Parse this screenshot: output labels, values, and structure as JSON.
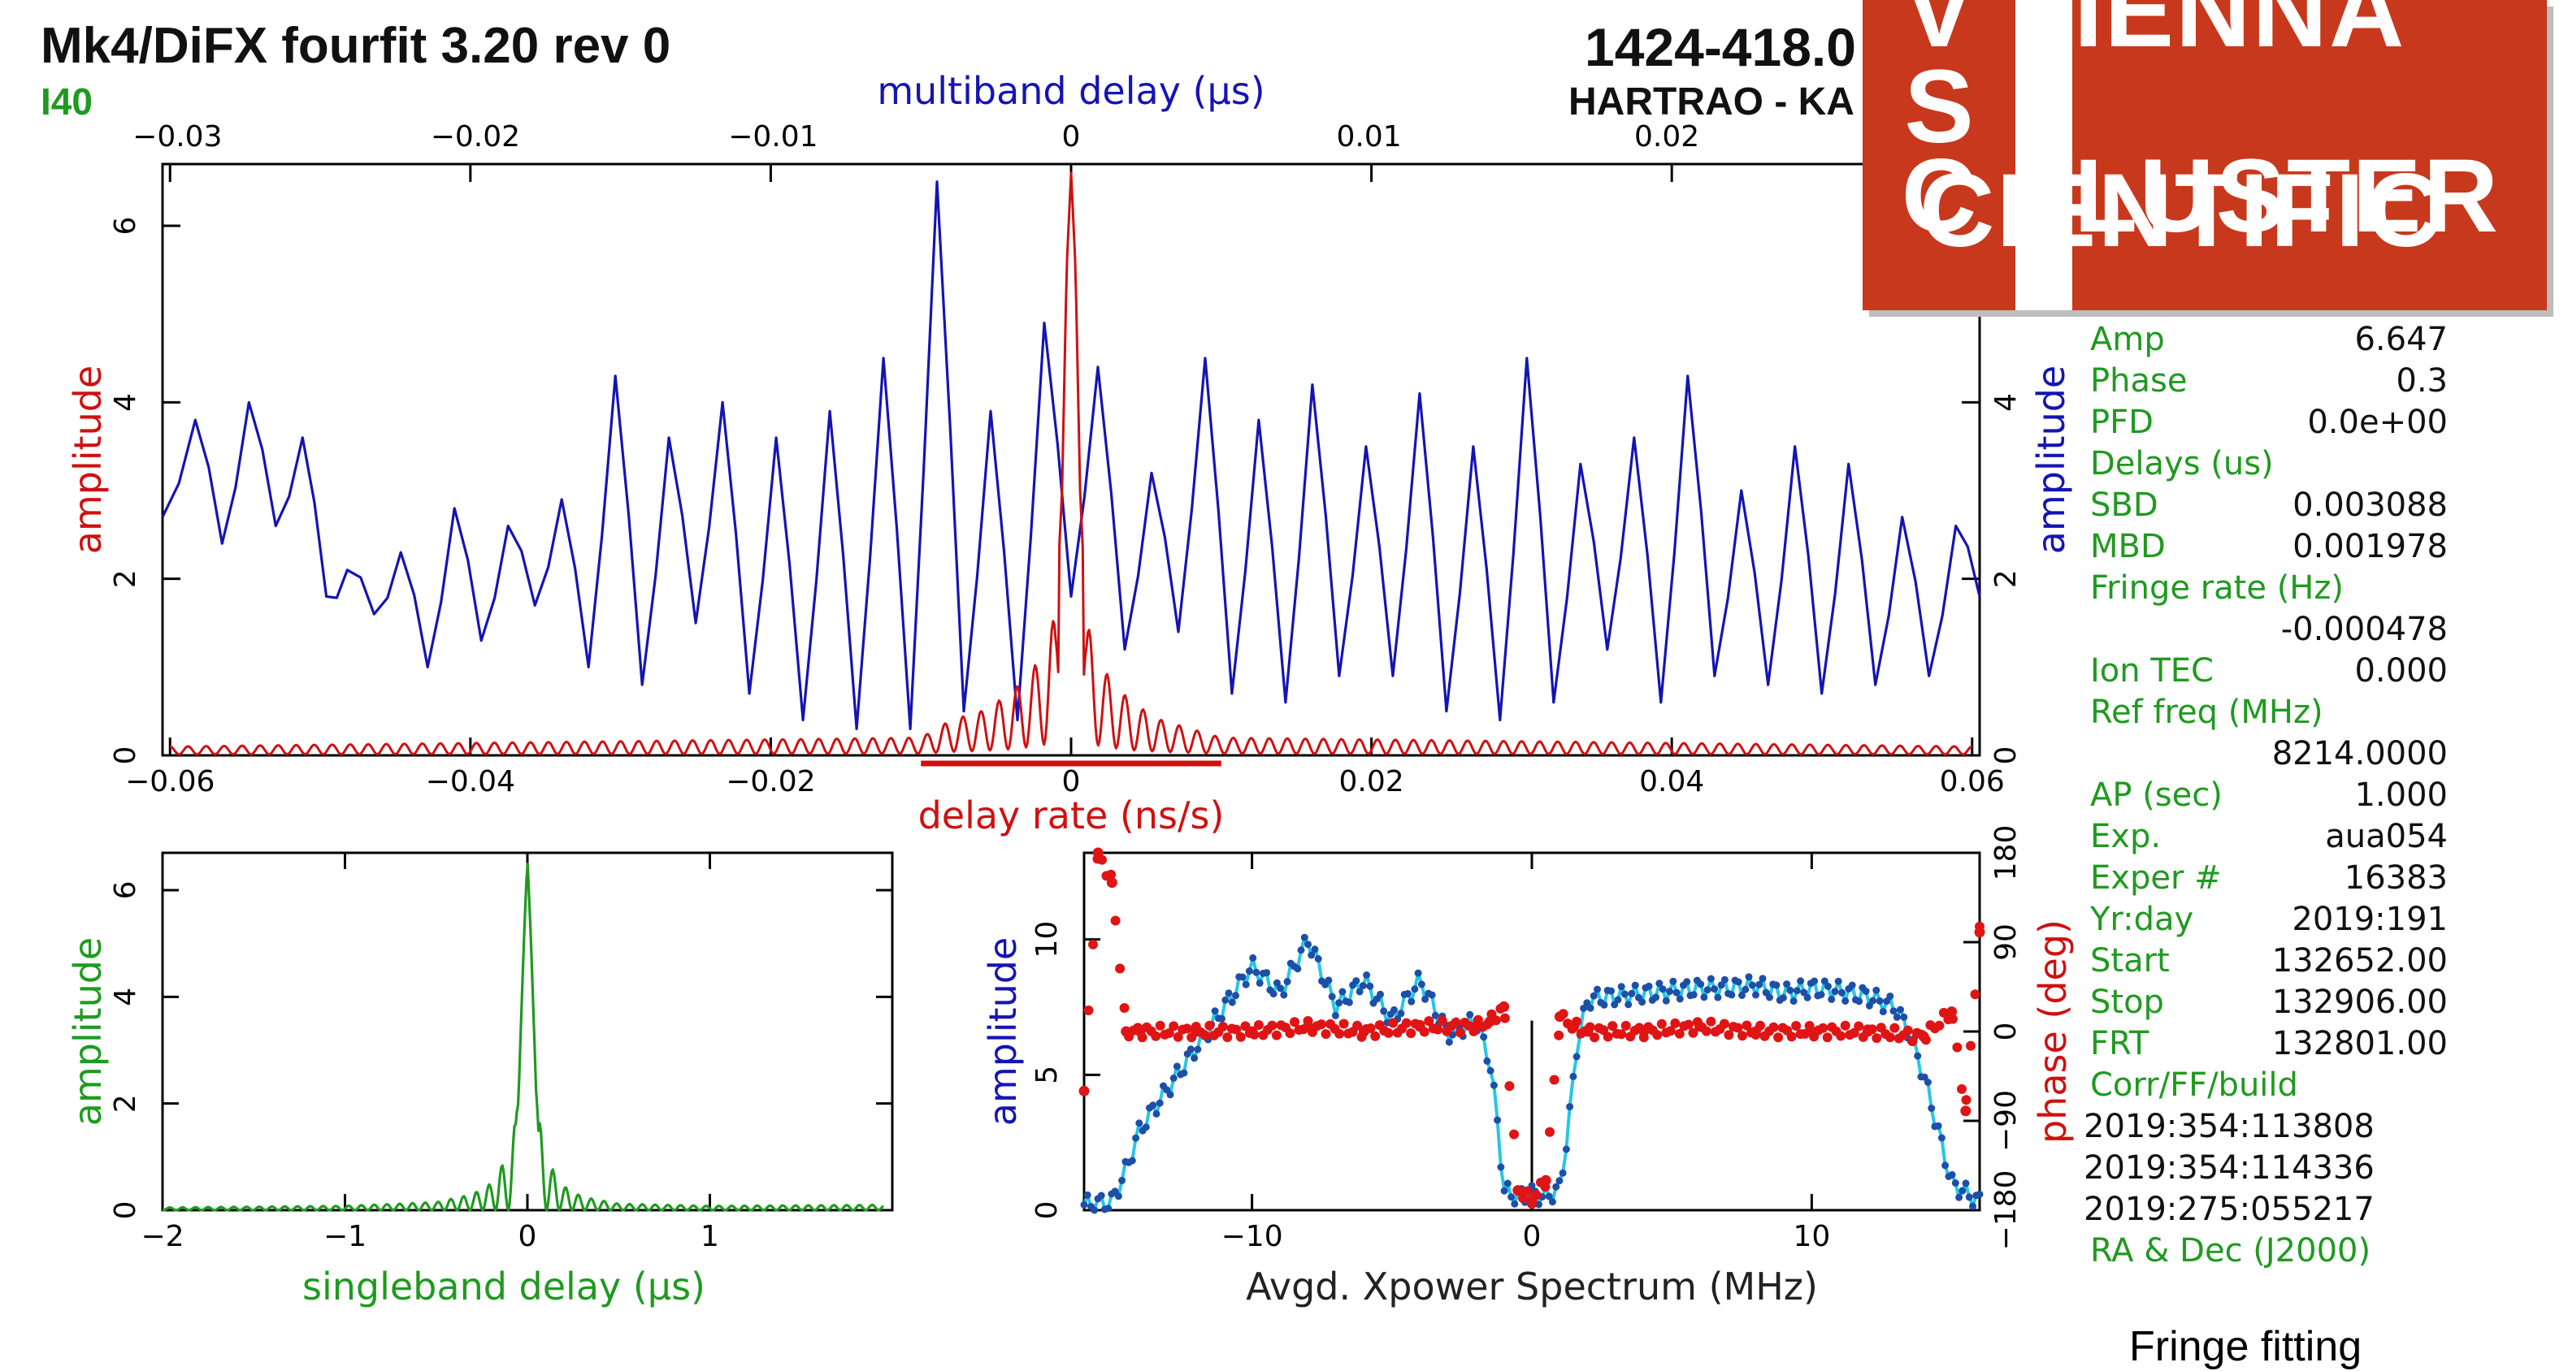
{
  "header": {
    "title": "Mk4/DiFX fourfit 3.20 rev 0",
    "label_left": "I40",
    "source": "1424-418.0",
    "baseline": "HARTRAO - KA"
  },
  "logo": {
    "line1": [
      "V",
      "IENNA"
    ],
    "line2": [
      "S",
      "CIENTIFIC"
    ],
    "line3": [
      "C",
      "LUSTER"
    ],
    "background": "#c8381c"
  },
  "info_panel": {
    "rows": [
      {
        "key": "Amp",
        "value": "6.647"
      },
      {
        "key": "Phase",
        "value": "0.3"
      },
      {
        "key": "PFD",
        "value": "0.0e+00"
      },
      {
        "key": "Delays (us)",
        "value": ""
      },
      {
        "key": "SBD",
        "value": "0.003088"
      },
      {
        "key": "MBD",
        "value": "0.001978"
      },
      {
        "key": "Fringe rate (Hz)",
        "value": ""
      },
      {
        "key": "",
        "value": "-0.000478"
      },
      {
        "key": "Ion TEC",
        "value": "0.000"
      },
      {
        "key": "Ref freq (MHz)",
        "value": ""
      },
      {
        "key": "",
        "value": "8214.0000"
      },
      {
        "key": "AP (sec)",
        "value": "1.000"
      },
      {
        "key": "Exp.",
        "value": "aua054"
      },
      {
        "key": "Exper #",
        "value": "16383"
      },
      {
        "key": "Yr:day",
        "value": "2019:191"
      },
      {
        "key": "Start",
        "value": "132652.00"
      },
      {
        "key": "Stop",
        "value": "132906.00"
      },
      {
        "key": "FRT",
        "value": "132801.00"
      },
      {
        "key": "Corr/FF/build",
        "value": ""
      }
    ],
    "build_dates": [
      "2019:354:113808",
      "2019:354:114336",
      "2019:275:055217"
    ],
    "footer": "RA & Dec (J2000)"
  },
  "caption": "Fringe fitting",
  "colors": {
    "blue": "#1414b4",
    "red": "#d01010",
    "green": "#1f9a1f",
    "cyan": "#22c8e6",
    "point_blue": "#1d4fa8",
    "point_red": "#e01414"
  },
  "chart_data": [
    {
      "type": "line",
      "panel": "delay-rate / multiband-delay",
      "top_axis": {
        "label": "multiband delay (μs)",
        "range": [
          -0.0305,
          0.0305
        ],
        "ticks": [
          -0.03,
          -0.02,
          -0.01,
          0,
          0.01,
          0.02
        ]
      },
      "bottom_axis": {
        "label": "delay rate (ns/s)",
        "range": [
          -0.0605,
          0.0605
        ],
        "ticks": [
          -0.06,
          -0.04,
          -0.02,
          0,
          0.02,
          0.04,
          0.06
        ]
      },
      "left_axis": {
        "label": "amplitude",
        "range": [
          0,
          6.7
        ],
        "ticks": [
          0,
          2,
          4,
          6
        ]
      },
      "right_axis": {
        "label": "amplitude",
        "range": [
          0,
          6.7
        ],
        "ticks": [
          0,
          2,
          4
        ]
      },
      "red_window": [
        -0.01,
        0.01
      ],
      "series": [
        {
          "axis": "multiband delay",
          "x": [
            -0.0305,
            -0.0294,
            -0.0285,
            -0.0276,
            -0.0267,
            -0.0258,
            -0.025,
            -0.0243,
            -0.0234,
            -0.0225,
            -0.0216,
            -0.0207,
            -0.0198,
            -0.0189,
            -0.018,
            -0.0171,
            -0.0162,
            -0.0153,
            -0.0144,
            -0.0135,
            -0.0126,
            -0.0117,
            -0.0108,
            -0.0099,
            -0.009,
            -0.0081,
            -0.0072,
            -0.0063,
            -0.0054,
            -0.0045,
            -0.0036,
            -0.0027,
            -0.0018,
            -0.0009,
            0.0,
            0.0009,
            0.0018,
            0.0027,
            0.0036,
            0.0045,
            0.0054,
            0.0063,
            0.0072,
            0.0081,
            0.009,
            0.0099,
            0.0108,
            0.0117,
            0.0126,
            0.0135,
            0.0144,
            0.0153,
            0.0162,
            0.0171,
            0.018,
            0.0189,
            0.0198,
            0.0207,
            0.0216,
            0.0225,
            0.0234,
            0.0243,
            0.0252,
            0.0261,
            0.027,
            0.0279,
            0.0288,
            0.0297,
            0.0305
          ],
          "y": [
            2.7,
            3.8,
            2.4,
            4.0,
            2.6,
            3.6,
            1.8,
            2.1,
            1.6,
            2.3,
            1.0,
            2.8,
            1.3,
            2.6,
            1.7,
            2.9,
            1.0,
            4.3,
            0.8,
            3.6,
            1.5,
            4.0,
            0.7,
            3.6,
            0.4,
            3.9,
            0.3,
            4.5,
            0.3,
            6.5,
            0.5,
            3.9,
            0.4,
            4.9,
            1.8,
            4.4,
            1.2,
            3.2,
            1.4,
            4.5,
            0.7,
            3.8,
            0.6,
            4.2,
            0.9,
            3.5,
            0.9,
            4.1,
            0.5,
            3.5,
            0.4,
            4.5,
            0.6,
            3.3,
            1.2,
            3.6,
            0.6,
            4.3,
            0.9,
            3.0,
            0.8,
            3.5,
            0.7,
            3.3,
            0.8,
            2.7,
            0.9,
            2.6,
            1.8
          ]
        },
        {
          "axis": "delay rate",
          "x": [
            -0.06,
            -0.01,
            -0.008,
            -0.006,
            -0.004,
            -0.003,
            -0.002,
            -0.0015,
            -0.001,
            -0.0006,
            -0.0003,
            0.0,
            0.0003,
            0.0006,
            0.001,
            0.0015,
            0.002,
            0.003,
            0.004,
            0.006,
            0.008,
            0.01,
            0.06
          ],
          "y": [
            0.1,
            0.2,
            0.4,
            0.5,
            0.7,
            0.9,
            1.1,
            1.4,
            1.6,
            3.0,
            5.5,
            6.6,
            5.5,
            3.0,
            1.5,
            1.3,
            1.0,
            0.8,
            0.6,
            0.4,
            0.3,
            0.2,
            0.1
          ]
        }
      ]
    },
    {
      "type": "line",
      "panel": "singleband delay",
      "x_axis": {
        "label": "singleband delay (μs)",
        "range": [
          -2,
          2
        ],
        "ticks": [
          -2,
          -1,
          0,
          1
        ]
      },
      "y_axis": {
        "label": "amplitude",
        "range": [
          0,
          6.7
        ],
        "ticks": [
          0,
          2,
          4,
          6
        ]
      },
      "series": [
        {
          "x": [
            -2.0,
            -1.0,
            -0.5,
            -0.3,
            -0.2,
            -0.15,
            -0.1,
            -0.05,
            -0.02,
            0.0,
            0.02,
            0.05,
            0.1,
            0.15,
            0.2,
            0.3,
            0.5,
            1.0,
            1.9
          ],
          "y": [
            0.05,
            0.08,
            0.15,
            0.3,
            0.5,
            0.8,
            1.0,
            2.0,
            5.0,
            6.6,
            5.0,
            2.0,
            1.0,
            0.7,
            0.45,
            0.25,
            0.12,
            0.08,
            0.1
          ]
        }
      ]
    },
    {
      "type": "scatter",
      "panel": "Avgd. Xpower Spectrum",
      "x_axis": {
        "label": "Avgd. Xpower Spectrum (MHz)",
        "range": [
          -16,
          16
        ],
        "ticks": [
          -10,
          0,
          10
        ]
      },
      "y_axis": {
        "label": "amplitude",
        "range": [
          0,
          13.2
        ],
        "ticks": [
          0,
          5,
          10
        ]
      },
      "y2_axis": {
        "label": "phase (deg)",
        "range": [
          -180,
          180
        ],
        "ticks": [
          -180,
          -90,
          0,
          90,
          180
        ]
      },
      "series": [
        {
          "name": "amplitude",
          "x": [
            -16,
            -15,
            -14.5,
            -14,
            -13,
            -12,
            -11,
            -10,
            -9,
            -8,
            -7,
            -6,
            -5,
            -4,
            -3,
            -2,
            -1.5,
            -1.2,
            -1,
            -0.5,
            0,
            0.5,
            1,
            1.3,
            1.6,
            2,
            3,
            4,
            5,
            6,
            7,
            8,
            9,
            10,
            11,
            12,
            13,
            13.5,
            14,
            14.5,
            15,
            16
          ],
          "y": [
            0.2,
            0.3,
            1.5,
            3.0,
            4.5,
            6.0,
            7.5,
            9.0,
            8.0,
            10.0,
            7.5,
            8.5,
            7.0,
            8.5,
            6.5,
            7.0,
            5.5,
            3.0,
            0.7,
            0.5,
            0.6,
            0.5,
            0.8,
            3.0,
            6.0,
            7.8,
            7.9,
            8.0,
            8.1,
            8.2,
            8.2,
            8.3,
            8.0,
            8.2,
            8.1,
            7.9,
            7.5,
            6.5,
            5.0,
            3.0,
            1.0,
            0.3
          ]
        },
        {
          "name": "phase",
          "x": [
            -16,
            -15.5,
            -15,
            -14.5,
            -14,
            -12,
            -10,
            -8,
            -6,
            -4,
            -2,
            -1.5,
            -1,
            -0.5,
            0,
            0.5,
            1,
            1.5,
            2,
            4,
            6,
            8,
            10,
            12,
            14,
            15,
            15.5,
            16
          ],
          "y": [
            -60,
            180,
            150,
            0,
            0,
            0,
            0,
            5,
            0,
            5,
            5,
            10,
            25,
            -160,
            -170,
            -150,
            15,
            5,
            0,
            0,
            5,
            0,
            0,
            0,
            -5,
            20,
            -80,
            100
          ]
        }
      ]
    }
  ]
}
